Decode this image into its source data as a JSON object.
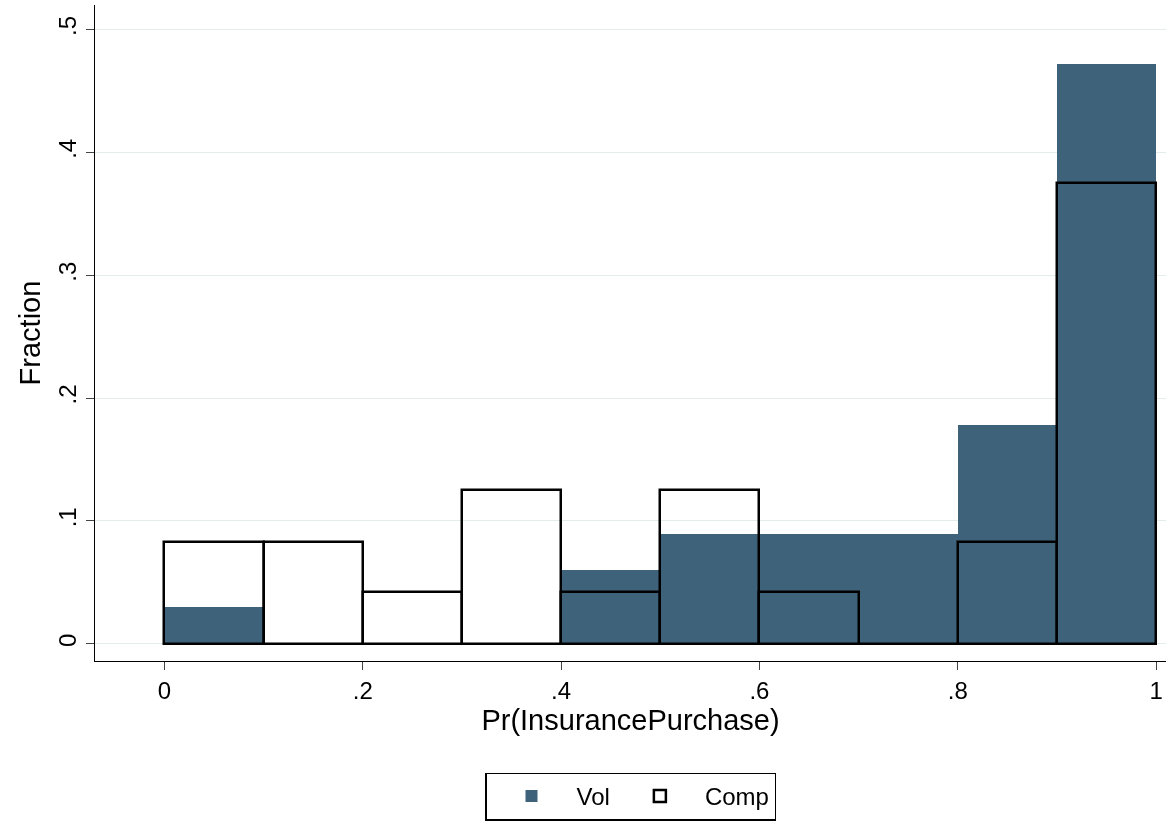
{
  "chart_data": {
    "type": "histogram",
    "xlabel": "Pr(InsurancePurchase)",
    "ylabel": "Fraction",
    "bins": [
      0,
      0.1,
      0.2,
      0.3,
      0.4,
      0.5,
      0.6,
      0.7,
      0.8,
      0.9,
      1
    ],
    "series": [
      {
        "name": "Vol",
        "color": "#3e6279",
        "values": [
          0.03,
          0,
          0,
          0,
          0.06,
          0.089,
          0.089,
          0.089,
          0.178,
          0.472
        ]
      },
      {
        "name": "Comp",
        "color": "#000000",
        "values": [
          0.083,
          0.083,
          0.042,
          0.125,
          0.042,
          0.125,
          0.042,
          0,
          0.083,
          0.375
        ]
      }
    ],
    "xlim": [
      -0.07,
      1.01
    ],
    "ylim": [
      -0.014,
      0.52
    ],
    "xticks": [
      0,
      {
        "value": 0.2,
        "label": ".2"
      },
      {
        "value": 0.4,
        "label": ".4"
      },
      {
        "value": 0.6,
        "label": ".6"
      },
      {
        "value": 0.8,
        "label": ".8"
      },
      1
    ],
    "yticks": [
      0,
      {
        "value": 0.1,
        "label": ".1"
      },
      {
        "value": 0.2,
        "label": ".2"
      },
      {
        "value": 0.3,
        "label": ".3"
      },
      {
        "value": 0.4,
        "label": ".4"
      },
      {
        "value": 0.5,
        "label": ".5"
      }
    ],
    "grid": "y",
    "legend": "bottom"
  }
}
